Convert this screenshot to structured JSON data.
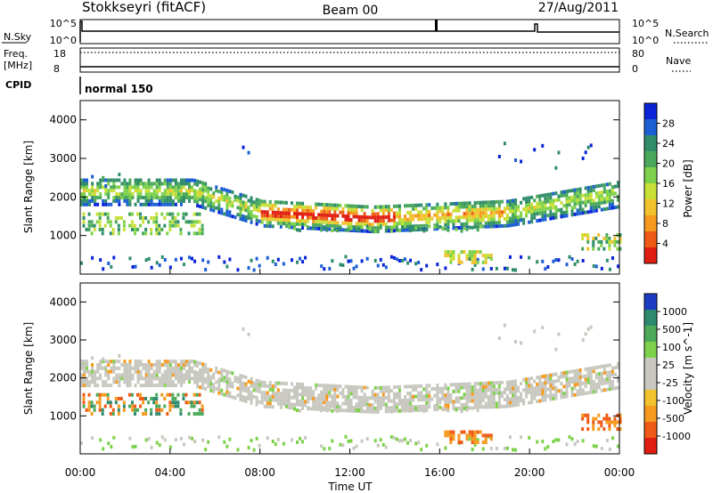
{
  "header": {
    "title": "Stokkseyri (fitACF)",
    "beam": "Beam 00",
    "date": "27/Aug/2011"
  },
  "sky_panel": {
    "left_label": "N.Sky",
    "right_label": "N.Search",
    "left_ticks": [
      "10^5",
      "10^0"
    ],
    "right_ticks": [
      "10^5",
      "10^0"
    ]
  },
  "freq_panel": {
    "left_label_1": "Freq.",
    "left_label_2": "[MHz]",
    "right_label": "Nave",
    "left_ticks": [
      "18",
      "8"
    ],
    "right_ticks": [
      "80",
      "0"
    ]
  },
  "cpid": {
    "label": "CPID",
    "value": "normal 150"
  },
  "chart_data": [
    {
      "type": "heatmap",
      "panel": "power",
      "ylabel": "Slant Range [km]",
      "ylim": [
        0,
        4500
      ],
      "yticks": [
        1000,
        2000,
        3000,
        4000
      ],
      "colorbar": {
        "label": "Power [dB]",
        "ticks": [
          "28",
          "24",
          "20",
          "16",
          "12",
          "8",
          "4"
        ],
        "colors": [
          "#0b24d8",
          "#1d5fd4",
          "#2f8d6a",
          "#4aa85c",
          "#7ed24b",
          "#c9e039",
          "#f2c22c",
          "#f59a1f",
          "#ef5b16",
          "#e01e12"
        ]
      }
    },
    {
      "type": "heatmap",
      "panel": "velocity",
      "ylabel": "Slant Range [km]",
      "ylim": [
        0,
        4500
      ],
      "yticks": [
        1000,
        2000,
        3000,
        4000
      ],
      "colorbar": {
        "label": "Velocity [m s^-1]",
        "ticks": [
          "1000",
          "500",
          "100",
          "25",
          "-25",
          "-100",
          "-500",
          "-1000"
        ],
        "colors": [
          "#1c3cc4",
          "#2e8a6e",
          "#4caa5a",
          "#7ed24b",
          "#c8c8c0",
          "#c8c8c0",
          "#f2c22c",
          "#f59a1f",
          "#ef5b16",
          "#e01e12"
        ]
      }
    }
  ],
  "time_axis": {
    "label": "Time UT",
    "ticks": [
      "00:00",
      "04:00",
      "08:00",
      "12:00",
      "16:00",
      "20:00",
      "00:00"
    ]
  }
}
